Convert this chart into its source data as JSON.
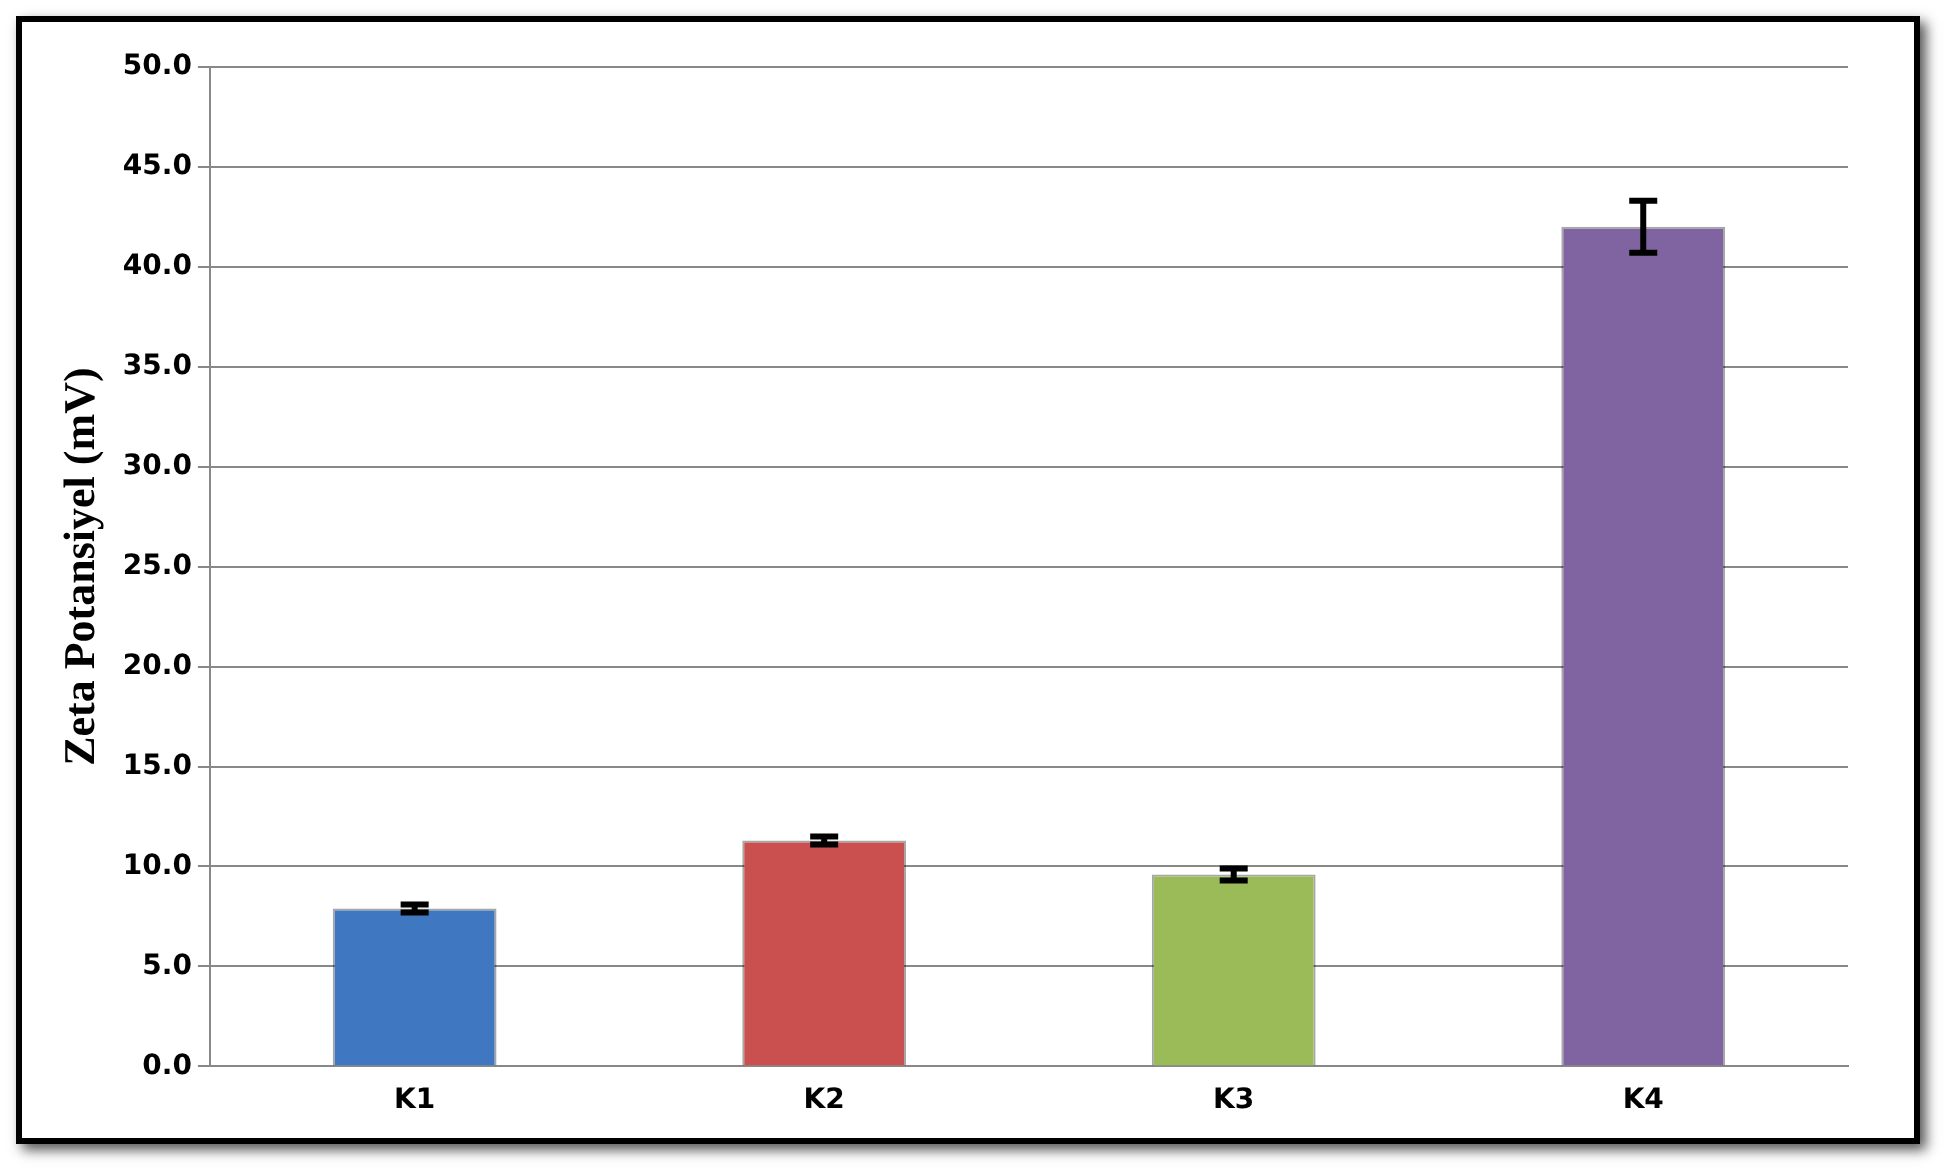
{
  "chart_data": {
    "type": "bar",
    "ylabel": "Zeta Potansiyel (mV)",
    "categories": [
      "K1",
      "K2",
      "K3",
      "K4"
    ],
    "values": [
      7.9,
      11.3,
      9.6,
      42.0
    ],
    "errors": [
      0.2,
      0.2,
      0.3,
      1.3
    ],
    "colors": [
      "#3f78c0",
      "#c9504f",
      "#9bbb59",
      "#8064a2"
    ],
    "ylim": [
      0,
      50
    ],
    "yticks": [
      {
        "value": 0,
        "label": "0.0"
      },
      {
        "value": 5,
        "label": "5.0"
      },
      {
        "value": 10,
        "label": "10.0"
      },
      {
        "value": 15,
        "label": "15.0"
      },
      {
        "value": 20,
        "label": "20.0"
      },
      {
        "value": 25,
        "label": "25.0"
      },
      {
        "value": 30,
        "label": "30.0"
      },
      {
        "value": 35,
        "label": "35.0"
      },
      {
        "value": 40,
        "label": "40.0"
      },
      {
        "value": 45,
        "label": "45.0"
      },
      {
        "value": 50,
        "label": "50.0"
      }
    ],
    "grid": "y",
    "legend": false
  }
}
